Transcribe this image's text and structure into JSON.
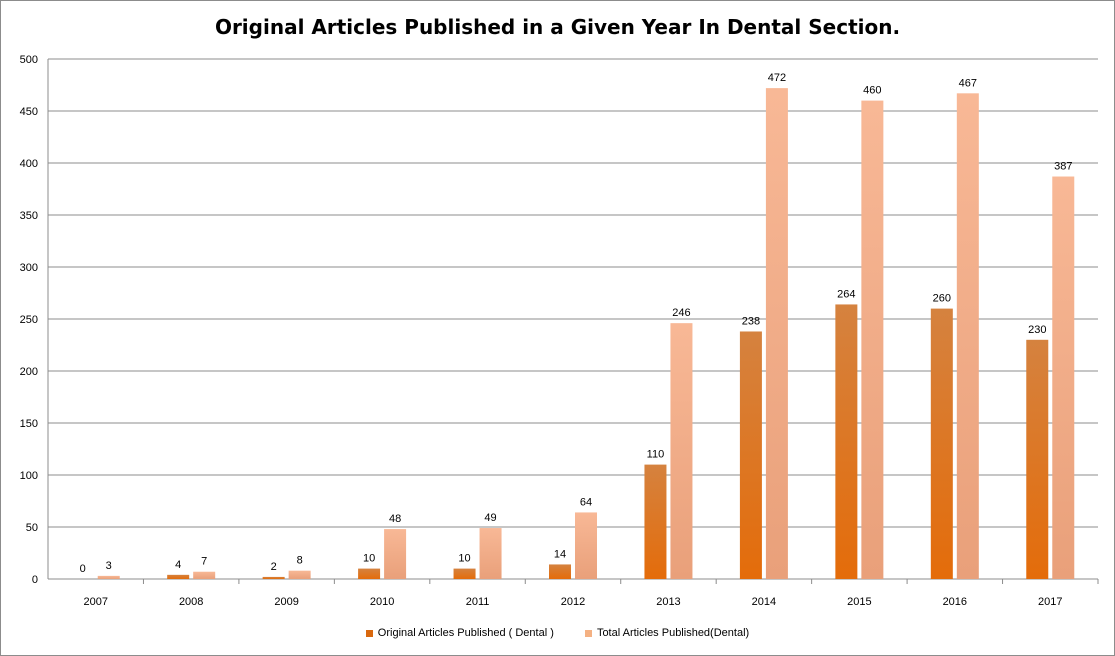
{
  "chart_data": {
    "type": "bar",
    "title": "Original Articles Published in a Given Year In Dental Section.",
    "xlabel": "",
    "ylabel": "",
    "ylim": [
      0,
      500
    ],
    "yticks": [
      0,
      50,
      100,
      150,
      200,
      250,
      300,
      350,
      400,
      450,
      500
    ],
    "categories": [
      "2007",
      "2008",
      "2009",
      "2010",
      "2011",
      "2012",
      "2013",
      "2014",
      "2015",
      "2016",
      "2017"
    ],
    "series": [
      {
        "name": "Original Articles Published ( Dental )",
        "color": "#d9680e",
        "values": [
          0,
          4,
          2,
          10,
          10,
          14,
          110,
          238,
          264,
          260,
          230
        ]
      },
      {
        "name": "Total Articles Published(Dental)",
        "color": "#f4b183",
        "values": [
          3,
          7,
          8,
          48,
          49,
          64,
          246,
          472,
          460,
          467,
          387
        ]
      }
    ],
    "grid": true,
    "legend_position": "bottom"
  }
}
